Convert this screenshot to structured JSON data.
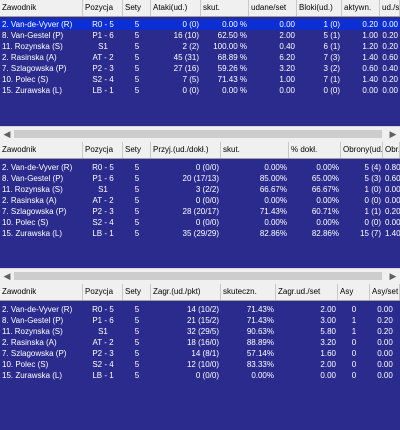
{
  "table1": {
    "headers": [
      "Zawodnik",
      "Pozycja",
      "Sety",
      "Ataki(ud.)",
      "skut.",
      "udane/set",
      "Bloki(ud.)",
      "aktywn.",
      "ud./set"
    ],
    "rows": [
      [
        "2. Van-de-Vyver (R)",
        "R0 - 5",
        "5",
        "0 (0)",
        "0.00 %",
        "0.00",
        "1 (0)",
        "0.20",
        "0.00"
      ],
      [
        "8. Van-Gestel (P)",
        "P1 - 6",
        "5",
        "16 (10)",
        "62.50 %",
        "2.00",
        "5 (1)",
        "1.00",
        "0.20"
      ],
      [
        "11. Rozynska (S)",
        "S1",
        "5",
        "2 (2)",
        "100.00 %",
        "0.40",
        "6 (1)",
        "1.20",
        "0.20"
      ],
      [
        "2. Rasinska (A)",
        "AT - 2",
        "5",
        "45 (31)",
        "68.89 %",
        "6.20",
        "7 (3)",
        "1.40",
        "0.60"
      ],
      [
        "7. Szlagowska (P)",
        "P2 - 3",
        "5",
        "27 (16)",
        "59.26 %",
        "3.20",
        "3 (2)",
        "0.60",
        "0.40"
      ],
      [
        "10. Polec (S)",
        "S2 - 4",
        "5",
        "7 (5)",
        "71.43 %",
        "1.00",
        "7 (1)",
        "1.40",
        "0.20"
      ],
      [
        "15. Zurawska (L)",
        "LB - 1",
        "5",
        "0 (0)",
        "0.00 %",
        "0.00",
        "0 (0)",
        "0.00",
        "0.00"
      ]
    ]
  },
  "table2": {
    "headers": [
      "Zawodnik",
      "Pozycja",
      "Sety",
      "Przyj.(ud./dokł.)",
      "skut.",
      "% dokł.",
      "Obrony(ud.)",
      "Obr./set"
    ],
    "rows": [
      [
        "2. Van-de-Vyver (R)",
        "R0 - 5",
        "5",
        "0 (0/0)",
        "0.00%",
        "0.00%",
        "5 (4)",
        "0.80"
      ],
      [
        "8. Van-Gestel (P)",
        "P1 - 6",
        "5",
        "20 (17/13)",
        "85.00%",
        "65.00%",
        "5 (3)",
        "0.60"
      ],
      [
        "11. Rozynska (S)",
        "S1",
        "5",
        "3 (2/2)",
        "66.67%",
        "66.67%",
        "1 (0)",
        "0.00"
      ],
      [
        "2. Rasinska (A)",
        "AT - 2",
        "5",
        "0 (0/0)",
        "0.00%",
        "0.00%",
        "0 (0)",
        "0.00"
      ],
      [
        "7. Szlagowska (P)",
        "P2 - 3",
        "5",
        "28 (20/17)",
        "71.43%",
        "60.71%",
        "1 (1)",
        "0.20"
      ],
      [
        "10. Polec (S)",
        "S2 - 4",
        "5",
        "0 (0/0)",
        "0.00%",
        "0.00%",
        "0 (0)",
        "0.00"
      ],
      [
        "15. Zurawska (L)",
        "LB - 1",
        "5",
        "35 (29/29)",
        "82.86%",
        "82.86%",
        "15 (7)",
        "1.40"
      ]
    ]
  },
  "table3": {
    "headers": [
      "Zawodnik",
      "Pozycja",
      "Sety",
      "Zagr.(ud./pkt)",
      "skuteczn.",
      "Zagr.ud./set",
      "Asy",
      "Asy/set"
    ],
    "rows": [
      [
        "2. Van-de-Vyver (R)",
        "R0 - 5",
        "5",
        "14 (10/2)",
        "71.43%",
        "2.00",
        "0",
        "0.00"
      ],
      [
        "8. Van-Gestel (P)",
        "P1 - 6",
        "5",
        "21 (15/2)",
        "71.43%",
        "3.00",
        "1",
        "0.20"
      ],
      [
        "11. Rozynska (S)",
        "S1",
        "5",
        "32 (29/5)",
        "90.63%",
        "5.80",
        "1",
        "0.20"
      ],
      [
        "2. Rasinska (A)",
        "AT - 2",
        "5",
        "18 (16/0)",
        "88.89%",
        "3.20",
        "0",
        "0.00"
      ],
      [
        "7. Szlagowska (P)",
        "P2 - 3",
        "5",
        "14 (8/1)",
        "57.14%",
        "1.60",
        "0",
        "0.00"
      ],
      [
        "10. Polec (S)",
        "S2 - 4",
        "5",
        "12 (10/0)",
        "83.33%",
        "2.00",
        "0",
        "0.00"
      ],
      [
        "15. Zurawska (L)",
        "LB - 1",
        "5",
        "0 (0/0)",
        "0.00%",
        "0.00",
        "0",
        "0.00"
      ]
    ]
  },
  "icons": {
    "scroll_left": "scroll-left-arrow-icon",
    "scroll_right": "scroll-right-arrow-icon"
  },
  "colors": {
    "table_bg": "#2b2b8e",
    "selected_row": "#0c2fd4",
    "header_bg": "#f0f0f0"
  }
}
